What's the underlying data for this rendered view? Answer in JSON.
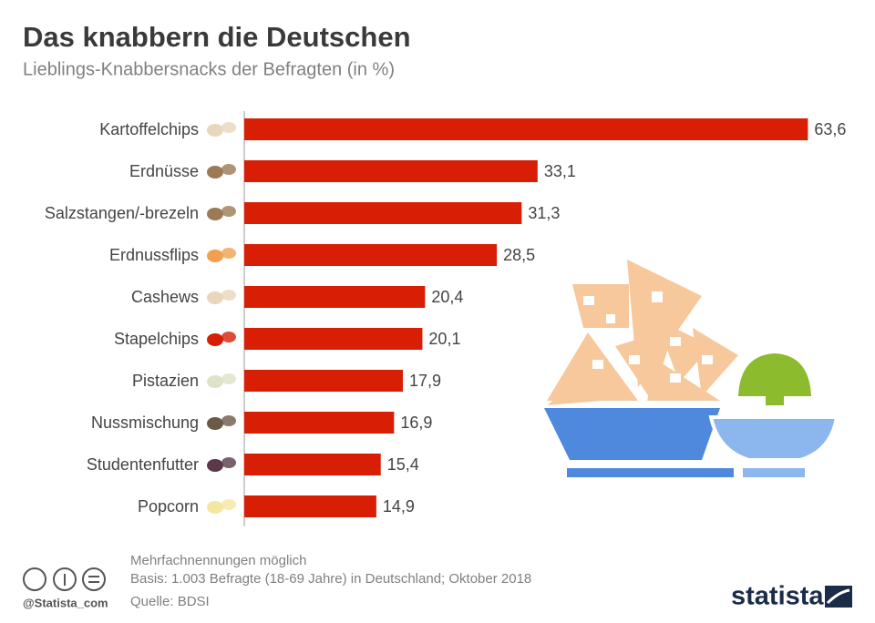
{
  "chart_data": {
    "type": "bar",
    "orientation": "horizontal",
    "title": "Das knabbern die Deutschen",
    "subtitle": "Lieblings-Knabbersnacks der Befragten (in %)",
    "categories": [
      "Kartoffelchips",
      "Erdnüsse",
      "Salzstangen/-brezeln",
      "Erdnussflips",
      "Cashews",
      "Stapelchips",
      "Pistazien",
      "Nussmischung",
      "Studentenfutter",
      "Popcorn"
    ],
    "values": [
      63.6,
      33.1,
      31.3,
      28.5,
      20.4,
      20.1,
      17.9,
      16.9,
      15.4,
      14.9
    ],
    "value_labels": [
      "63,6",
      "33,1",
      "31,3",
      "28,5",
      "20,4",
      "20,1",
      "17,9",
      "16,9",
      "15,4",
      "14,9"
    ],
    "color": "#d81e05",
    "xlim": [
      0,
      65
    ]
  },
  "footer": {
    "notes": [
      "Mehrfachnennungen möglich",
      "Basis: 1.003 Befragte (18-69 Jahre) in Deutschland; Oktober 2018",
      "Quelle: BDSI"
    ],
    "handle": "@Statista_com",
    "brand": "statista"
  }
}
